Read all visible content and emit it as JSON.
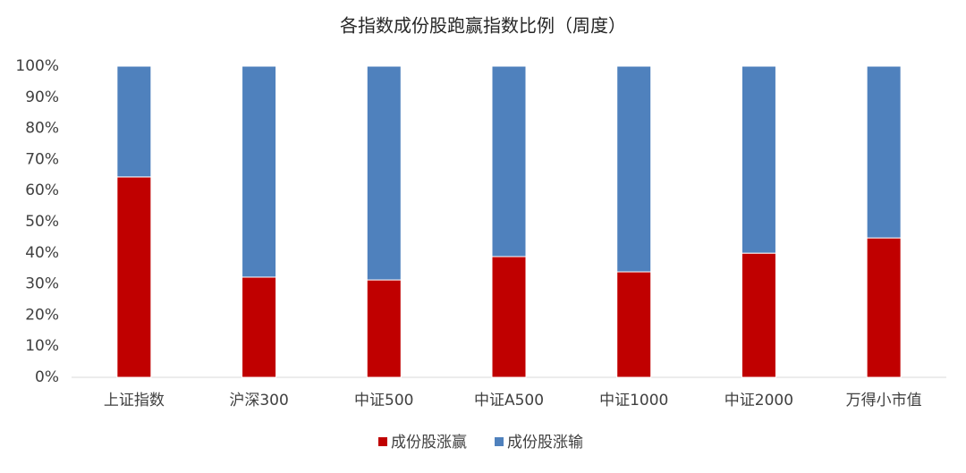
{
  "chart_data": {
    "type": "stacked_bar",
    "title": "各指数成份股跑赢指数比例（周度）",
    "categories": [
      "上证指数",
      "沪深300",
      "中证500",
      "中证A500",
      "中证1000",
      "中证2000",
      "万得小市值"
    ],
    "series": [
      {
        "name": "成份股涨赢",
        "color": "#c00000",
        "values": [
          64.4,
          32.2,
          31.3,
          38.8,
          33.9,
          39.9,
          44.8
        ]
      },
      {
        "name": "成份股涨输",
        "color": "#4f81bd",
        "values": [
          35.6,
          67.8,
          68.7,
          61.2,
          66.1,
          60.1,
          55.2
        ]
      }
    ],
    "ylim": [
      0,
      100
    ],
    "yticks": [
      {
        "value": 0,
        "label": "0%"
      },
      {
        "value": 10,
        "label": "10%"
      },
      {
        "value": 20,
        "label": "20%"
      },
      {
        "value": 30,
        "label": "30%"
      },
      {
        "value": 40,
        "label": "40%"
      },
      {
        "value": 50,
        "label": "50%"
      },
      {
        "value": 60,
        "label": "60%"
      },
      {
        "value": 70,
        "label": "70%"
      },
      {
        "value": 80,
        "label": "80%"
      },
      {
        "value": 90,
        "label": "90%"
      },
      {
        "value": 100,
        "label": "100%"
      }
    ],
    "grid": false,
    "legend": "bottom"
  }
}
